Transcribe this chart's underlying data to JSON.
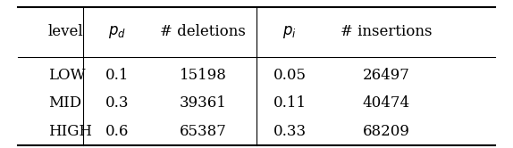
{
  "col_labels": [
    "level",
    "$p_d$",
    "# deletions",
    "$p_i$",
    "# insertions"
  ],
  "rows": [
    [
      "LOW",
      "0.1",
      "15198",
      "0.05",
      "26497"
    ],
    [
      "MID",
      "0.3",
      "39361",
      "0.11",
      "40474"
    ],
    [
      "HIGH",
      "0.6",
      "65387",
      "0.33",
      "68209"
    ]
  ],
  "figsize": [
    5.74,
    1.66
  ],
  "dpi": 100,
  "fontsize": 12
}
